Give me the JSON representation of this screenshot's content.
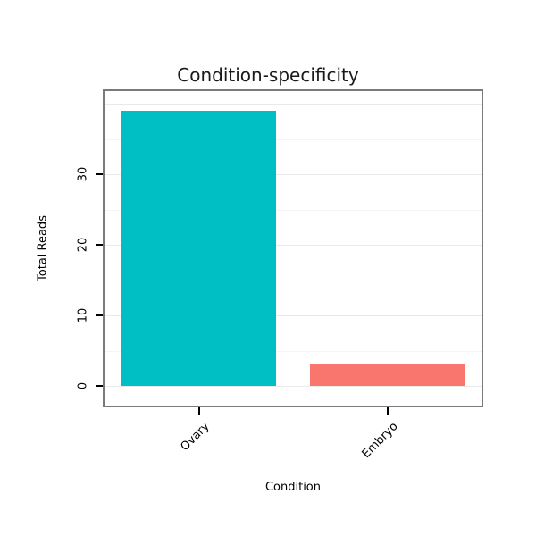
{
  "figure": {
    "title": "Condition-specificity"
  },
  "chart_data": {
    "type": "bar",
    "title": "Condition-specificity",
    "categories": [
      "Ovary",
      "Embryo"
    ],
    "values": [
      39,
      3
    ],
    "bar_colors": [
      "#00BFC4",
      "#F8766D"
    ],
    "xlabel": "Condition",
    "ylabel": "Total Reads",
    "yticks": [
      0,
      10,
      20,
      30
    ],
    "ylim": [
      0,
      41
    ],
    "grid": true,
    "grid_major_color": "#e9e9e9",
    "grid_minor_color": "#f4f4f4",
    "panel_border_color": "#7a7a7a",
    "tick_color": "#000000",
    "background": "#ffffff"
  }
}
